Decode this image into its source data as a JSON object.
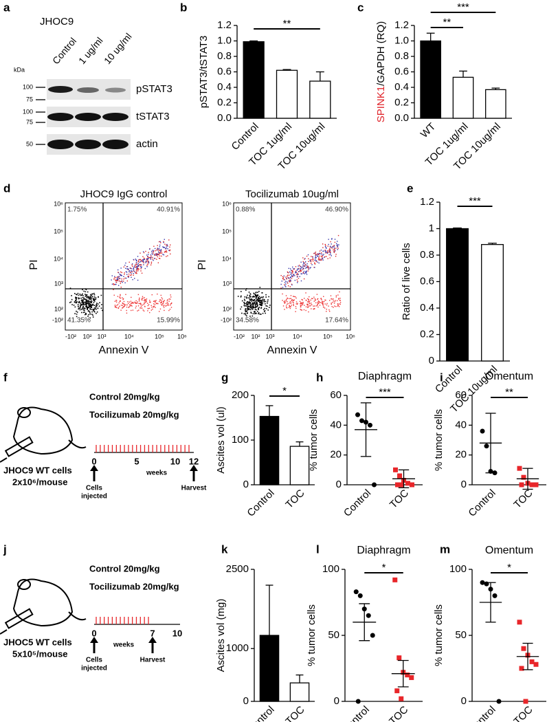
{
  "panel_letters": [
    "a",
    "b",
    "c",
    "d",
    "e",
    "f",
    "g",
    "h",
    "i",
    "j",
    "k",
    "l",
    "m"
  ],
  "blot": {
    "title": "JHOC9",
    "lanes": [
      "Control",
      "1 ug/ml",
      "10 ug/ml"
    ],
    "unit": "kDa",
    "markers": [
      "100",
      "75",
      "100",
      "75",
      "50"
    ],
    "proteins": [
      "pSTAT3",
      "tSTAT3",
      "actin"
    ]
  },
  "flow": {
    "panels": [
      {
        "title": "JHOC9 IgG control",
        "quadrants": [
          "1.75%",
          "40.91%",
          "41.35%",
          "15.99%"
        ]
      },
      {
        "title": "Tocilizumab 10ug/ml",
        "quadrants": [
          "0.88%",
          "46.90%",
          "34.58%",
          "17.64%"
        ]
      }
    ],
    "xlabel": "Annexin V",
    "ylabel": "PI",
    "yticks": [
      "10⁶",
      "10⁵",
      "10⁴",
      "10³",
      "10²",
      "-10²"
    ],
    "xticks": [
      "-10²",
      "10²",
      "10³",
      "10⁴",
      "10⁵",
      "10⁶"
    ]
  },
  "schemes": [
    {
      "treatments": [
        "Control 20mg/kg",
        "Tocilizumab 20mg/kg"
      ],
      "cells": "JHOC9 WT cells",
      "dose": "2x10⁶/mouse",
      "timeline": [
        "0",
        "5",
        "10",
        "12"
      ],
      "unit": "weeks",
      "start": [
        "Cells",
        "injected"
      ],
      "end": "Harvest"
    },
    {
      "treatments": [
        "Control 20mg/kg",
        "Tocilizumab 20mg/kg"
      ],
      "cells": "JHOC5 WT cells",
      "dose": "5x10⁵/mouse",
      "timeline": [
        "0",
        "7",
        "10"
      ],
      "unit": "weeks",
      "start": [
        "Cells",
        "injected"
      ],
      "end": "Harvest"
    }
  ],
  "chart_data": [
    {
      "type": "bar",
      "ylabel": "pSTAT3/tSTAT3",
      "categories": [
        "Control",
        "TOC 1ug/ml",
        "TOC 10ug/ml"
      ],
      "values": [
        0.99,
        0.62,
        0.48
      ],
      "errors": [
        0.01,
        0.01,
        0.12
      ],
      "colors": [
        "#000000",
        "#ffffff",
        "#ffffff"
      ],
      "ylim": [
        0,
        1.2
      ],
      "yticks": [
        {
          "value": 0,
          "label": "0.0"
        },
        0.2,
        0.4,
        0.6,
        0.8,
        {
          "value": 1,
          "label": "1.0"
        },
        1.2
      ],
      "annotations": [
        "**"
      ]
    },
    {
      "type": "bar",
      "ylabel": [
        "SPINK1",
        "/GAPDH (RQ)"
      ],
      "ylabel_colors": [
        "#e0242b",
        "#000000"
      ],
      "categories": [
        "WT",
        "TOC 1ug/ml",
        "TOC 10ug/ml"
      ],
      "values": [
        1.0,
        0.53,
        0.37
      ],
      "errors": [
        0.1,
        0.08,
        0.02
      ],
      "colors": [
        "#000000",
        "#ffffff",
        "#ffffff"
      ],
      "ylim": [
        0,
        1.2
      ],
      "yticks": [
        {
          "value": 0,
          "label": "0.0"
        },
        0.2,
        0.4,
        0.6,
        0.8,
        {
          "value": 1,
          "label": "1.0"
        },
        1.2
      ],
      "annotations": [
        "**",
        "***"
      ]
    },
    {
      "type": "bar",
      "ylabel": "Ratio of live cells",
      "categories": [
        "Control",
        "TOC 10ug/ml"
      ],
      "values": [
        1.0,
        0.88
      ],
      "errors": [
        0.005,
        0.01
      ],
      "colors": [
        "#000000",
        "#ffffff"
      ],
      "ylim": [
        0,
        1.2
      ],
      "yticks": [
        0,
        0.2,
        0.4,
        0.6,
        0.8,
        1,
        1.2
      ],
      "annotations": [
        "***"
      ]
    },
    {
      "type": "bar",
      "ylabel": "Ascites vol (ul)",
      "categories": [
        "Control",
        "TOC"
      ],
      "values": [
        153,
        86
      ],
      "errors": [
        24,
        10
      ],
      "colors": [
        "#000000",
        "#ffffff"
      ],
      "ylim": [
        0,
        200
      ],
      "yticks": [
        0,
        100,
        200
      ],
      "annotations": [
        "*"
      ]
    },
    {
      "type": "dot",
      "title": "Diaphragm",
      "ylabel": "% tumor cells",
      "series": [
        {
          "name": "Control",
          "color": "#000000",
          "marker": "circle",
          "values": [
            47,
            43,
            42,
            40,
            0
          ],
          "mean": 37,
          "sd": 18
        },
        {
          "name": "TOC",
          "color": "#e8262a",
          "marker": "square",
          "values": [
            10,
            6,
            3,
            1,
            0,
            0,
            0
          ],
          "mean": 4,
          "sd": 6
        }
      ],
      "ylim": [
        0,
        60
      ],
      "yticks": [
        0,
        20,
        40,
        60
      ],
      "annotations": [
        "***"
      ]
    },
    {
      "type": "dot",
      "title": "Omentum",
      "ylabel": "% tumor cells",
      "series": [
        {
          "name": "Control",
          "color": "#000000",
          "marker": "circle",
          "values": [
            36,
            26,
            9,
            8
          ],
          "mean": 28,
          "sd": 20
        },
        {
          "name": "TOC",
          "color": "#e8262a",
          "marker": "square",
          "values": [
            11,
            5,
            1,
            0,
            0,
            0
          ],
          "mean": 4,
          "sd": 7
        }
      ],
      "ylim": [
        0,
        60
      ],
      "yticks": [
        0,
        20,
        40,
        60
      ],
      "annotations": [
        "**"
      ]
    },
    {
      "type": "bar",
      "ylabel": "Ascites vol (mg)",
      "categories": [
        "Control",
        "TOC"
      ],
      "values": [
        1250,
        350
      ],
      "errors": [
        950,
        150
      ],
      "colors": [
        "#000000",
        "#ffffff"
      ],
      "ylim": [
        0,
        2500
      ],
      "yticks": [
        0,
        1000,
        2500
      ]
    },
    {
      "type": "dot",
      "title": "Diaphragm",
      "ylabel": "% tumor cells",
      "series": [
        {
          "name": "Control",
          "color": "#000000",
          "marker": "circle",
          "values": [
            83,
            80,
            70,
            65,
            50,
            0
          ],
          "mean": 60,
          "sd": 14
        },
        {
          "name": "TOC",
          "color": "#e8262a",
          "marker": "square",
          "values": [
            92,
            33,
            22,
            20,
            18,
            8,
            2
          ],
          "mean": 21,
          "sd": 10
        }
      ],
      "ylim": [
        0,
        100
      ],
      "yticks": [
        0,
        50,
        100
      ],
      "annotations": [
        "*"
      ]
    },
    {
      "type": "dot",
      "title": "Omentum",
      "ylabel": "% tumor cells",
      "series": [
        {
          "name": "Control",
          "color": "#000000",
          "marker": "circle",
          "values": [
            90,
            89,
            85,
            80,
            0
          ],
          "mean": 75,
          "sd": 15
        },
        {
          "name": "TOC",
          "color": "#e8262a",
          "marker": "square",
          "values": [
            60,
            40,
            35,
            30,
            28,
            25,
            0
          ],
          "mean": 34,
          "sd": 10
        }
      ],
      "ylim": [
        0,
        100
      ],
      "yticks": [
        0,
        50,
        100
      ],
      "annotations": [
        "*"
      ]
    }
  ]
}
